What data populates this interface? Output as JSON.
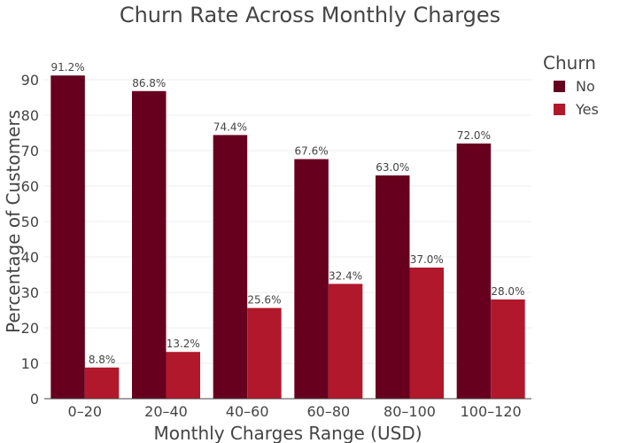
{
  "chart_data": {
    "type": "bar",
    "title": "Churn Rate Across Monthly Charges",
    "xlabel": "Monthly Charges Range (USD)",
    "ylabel": "Percentage of Customers",
    "categories": [
      "0–20",
      "20–40",
      "40–60",
      "60–80",
      "80–100",
      "100–120"
    ],
    "series": [
      {
        "name": "No",
        "values": [
          91.2,
          86.8,
          74.4,
          67.6,
          63.0,
          72.0
        ],
        "labels": [
          "91.2%",
          "86.8%",
          "74.4%",
          "67.6%",
          "63.0%",
          "72.0%"
        ],
        "color": "#67001f"
      },
      {
        "name": "Yes",
        "values": [
          8.8,
          13.2,
          25.6,
          32.4,
          37.0,
          28.0
        ],
        "labels": [
          "8.8%",
          "13.2%",
          "25.6%",
          "32.4%",
          "37.0%",
          "28.0%"
        ],
        "color": "#b2182b"
      }
    ],
    "ylim": [
      0,
      100
    ],
    "yticks": [
      0,
      10,
      20,
      30,
      40,
      50,
      60,
      70,
      80,
      90
    ],
    "grid": true,
    "legend": {
      "title": "Churn",
      "placement": "top-right"
    }
  }
}
